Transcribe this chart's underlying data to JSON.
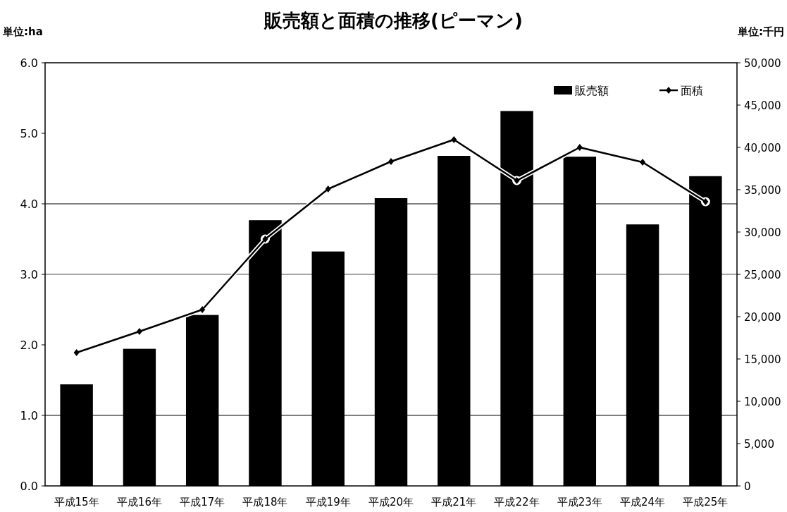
{
  "chart_data": {
    "type": "bar",
    "title": "販売額と面積の推移(ピーマン)",
    "ylabel": "単位:ha",
    "y2label": "単位:千円",
    "categories": [
      "平成15年",
      "平成16年",
      "平成17年",
      "平成18年",
      "平成19年",
      "平成20年",
      "平成21年",
      "平成22年",
      "平成23年",
      "平成24年",
      "平成25年"
    ],
    "series": [
      {
        "name": "販売額",
        "axis": "y2",
        "color": "#000000",
        "values": [
          12000,
          16200,
          20200,
          31400,
          27700,
          34000,
          39000,
          44300,
          38900,
          30900,
          36600
        ]
      },
      {
        "name": "面積",
        "type": "line",
        "axis": "y",
        "color": "#000000",
        "marker": "diamond",
        "line_style": "solid",
        "values": [
          1.89,
          2.19,
          2.5,
          3.5,
          4.21,
          4.6,
          4.91,
          4.33,
          4.8,
          4.59,
          4.03
        ]
      }
    ],
    "ylim": [
      0,
      6
    ],
    "yticks": [
      {
        "value": 0,
        "label": "0.0"
      },
      {
        "value": 1,
        "label": "1.0"
      },
      {
        "value": 2,
        "label": "2.0"
      },
      {
        "value": 3,
        "label": "3.0"
      },
      {
        "value": 4,
        "label": "4.0"
      },
      {
        "value": 5,
        "label": "5.0"
      },
      {
        "value": 6,
        "label": "6.0"
      }
    ],
    "y2lim": [
      0,
      50000
    ],
    "y2ticks": [
      {
        "value": 0,
        "label": "0"
      },
      {
        "value": 5000,
        "label": "5,000"
      },
      {
        "value": 10000,
        "label": "10,000"
      },
      {
        "value": 15000,
        "label": "15,000"
      },
      {
        "value": 20000,
        "label": "20,000"
      },
      {
        "value": 25000,
        "label": "25,000"
      },
      {
        "value": 30000,
        "label": "30,000"
      },
      {
        "value": 35000,
        "label": "35,000"
      },
      {
        "value": 40000,
        "label": "40,000"
      },
      {
        "value": 45000,
        "label": "45,000"
      },
      {
        "value": 50000,
        "label": "50,000"
      }
    ],
    "ref_lines": [
      {
        "axis": "y",
        "value": 1,
        "color": "#555555"
      },
      {
        "axis": "y",
        "value": 3,
        "color": "#888888"
      },
      {
        "axis": "y",
        "value": 4,
        "color": "#555555"
      }
    ],
    "legend": "top right"
  }
}
